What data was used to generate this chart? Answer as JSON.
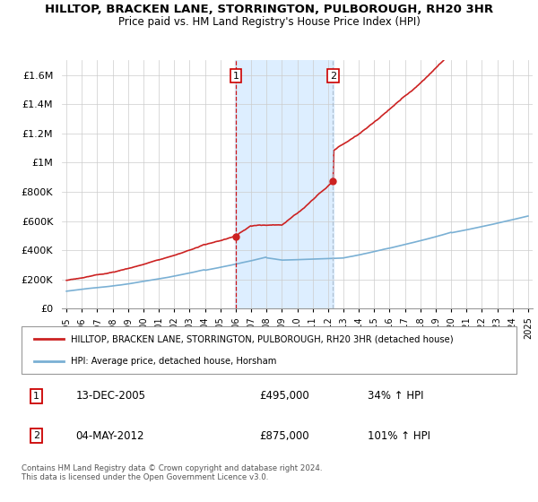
{
  "title": "HILLTOP, BRACKEN LANE, STORRINGTON, PULBOROUGH, RH20 3HR",
  "subtitle": "Price paid vs. HM Land Registry's House Price Index (HPI)",
  "ylabel_ticks": [
    "£0",
    "£200K",
    "£400K",
    "£600K",
    "£800K",
    "£1M",
    "£1.2M",
    "£1.4M",
    "£1.6M"
  ],
  "ytick_values": [
    0,
    200000,
    400000,
    600000,
    800000,
    1000000,
    1200000,
    1400000,
    1600000
  ],
  "ylim": [
    0,
    1700000
  ],
  "sale1_x": 2006.0,
  "sale1_price": 495000,
  "sale2_x": 2012.33,
  "sale2_price": 875000,
  "legend_line1": "HILLTOP, BRACKEN LANE, STORRINGTON, PULBOROUGH, RH20 3HR (detached house)",
  "legend_line2": "HPI: Average price, detached house, Horsham",
  "footer": "Contains HM Land Registry data © Crown copyright and database right 2024.\nThis data is licensed under the Open Government Licence v3.0.",
  "line_color_red": "#cc2222",
  "line_color_blue": "#7ab0d4",
  "box_fill": "#ddeeff",
  "sale_box_color": "#cc0000",
  "sale2_vline_color": "#aabbcc",
  "background_color": "#ffffff",
  "xlim_start": 1994.7,
  "xlim_end": 2025.3
}
